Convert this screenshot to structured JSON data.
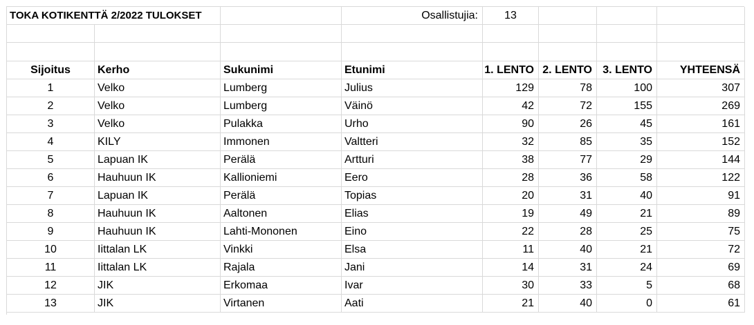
{
  "sheet": {
    "title": "TOKA KOTIKENTTÄ 2/2022 TULOKSET",
    "participants_label": "Osallistujia:",
    "participants_value": "13"
  },
  "table": {
    "headers": [
      "Sijoitus",
      "Kerho",
      "Sukunimi",
      "Etunimi",
      "1. LENTO",
      "2. LENTO",
      "3. LENTO",
      "YHTEENSÄ"
    ],
    "rows": [
      [
        "1",
        "Velko",
        "Lumberg",
        "Julius",
        "129",
        "78",
        "100",
        "307"
      ],
      [
        "2",
        "Velko",
        "Lumberg",
        "Väinö",
        "42",
        "72",
        "155",
        "269"
      ],
      [
        "3",
        "Velko",
        "Pulakka",
        "Urho",
        "90",
        "26",
        "45",
        "161"
      ],
      [
        "4",
        "KILY",
        "Immonen",
        "Valtteri",
        "32",
        "85",
        "35",
        "152"
      ],
      [
        "5",
        "Lapuan IK",
        "Perälä",
        "Artturi",
        "38",
        "77",
        "29",
        "144"
      ],
      [
        "6",
        "Hauhuun IK",
        "Kallioniemi",
        "Eero",
        "28",
        "36",
        "58",
        "122"
      ],
      [
        "7",
        "Lapuan IK",
        "Perälä",
        "Topias",
        "20",
        "31",
        "40",
        "91"
      ],
      [
        "8",
        "Hauhuun IK",
        "Aaltonen",
        "Elias",
        "19",
        "49",
        "21",
        "89"
      ],
      [
        "9",
        "Hauhuun IK",
        "Lahti-Mononen",
        "Eino",
        "22",
        "28",
        "25",
        "75"
      ],
      [
        "10",
        "Iittalan LK",
        "Vinkki",
        "Elsa",
        "11",
        "40",
        "21",
        "72"
      ],
      [
        "11",
        "Iittalan LK",
        "Rajala",
        "Jani",
        "14",
        "31",
        "24",
        "69"
      ],
      [
        "12",
        "JIK",
        "Erkomaa",
        "Ivar",
        "30",
        "33",
        "5",
        "68"
      ],
      [
        "13",
        "JIK",
        "Virtanen",
        "Aati",
        "21",
        "40",
        "0",
        "61"
      ]
    ]
  }
}
